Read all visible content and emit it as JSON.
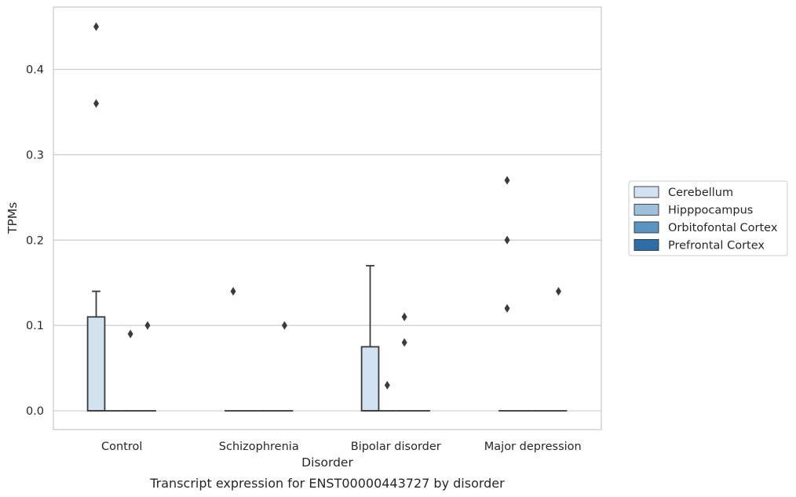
{
  "caption": "Transcript expression for ENST00000443727 by disorder",
  "chart_data": {
    "type": "box",
    "xlabel": "Disorder",
    "ylabel": "TPMs",
    "ylim": [
      -0.022,
      0.473
    ],
    "yticks": [
      0.0,
      0.1,
      0.2,
      0.3,
      0.4
    ],
    "ytick_labels": [
      "0.0",
      "0.1",
      "0.2",
      "0.3",
      "0.4"
    ],
    "grid": "horizontal",
    "legend_placement": "right, outside plot",
    "categories": [
      "Control",
      "Schizophrenia",
      "Bipolar disorder",
      "Major depression"
    ],
    "series": [
      {
        "name": "Cerebellum",
        "color": "#d3e2f0",
        "boxes": [
          {
            "q1": 0.0,
            "median": 0.0,
            "q3": 0.11,
            "whisker_low": 0.0,
            "whisker_high": 0.14,
            "outliers": [
              0.45,
              0.36
            ]
          },
          {
            "q1": 0.0,
            "median": 0.0,
            "q3": 0.0,
            "whisker_low": 0.0,
            "whisker_high": 0.0,
            "outliers": [
              0.14
            ]
          },
          {
            "q1": 0.0,
            "median": 0.0,
            "q3": 0.075,
            "whisker_low": 0.0,
            "whisker_high": 0.17,
            "outliers": []
          },
          {
            "q1": 0.0,
            "median": 0.0,
            "q3": 0.0,
            "whisker_low": 0.0,
            "whisker_high": 0.0,
            "outliers": [
              0.27,
              0.2,
              0.12
            ]
          }
        ]
      },
      {
        "name": "Hipppocampus",
        "color": "#9dc0dc",
        "boxes": [
          {
            "q1": 0.0,
            "median": 0.0,
            "q3": 0.0,
            "whisker_low": 0.0,
            "whisker_high": 0.0,
            "outliers": []
          },
          {
            "q1": 0.0,
            "median": 0.0,
            "q3": 0.0,
            "whisker_low": 0.0,
            "whisker_high": 0.0,
            "outliers": []
          },
          {
            "q1": 0.0,
            "median": 0.0,
            "q3": 0.0,
            "whisker_low": 0.0,
            "whisker_high": 0.0,
            "outliers": [
              0.03
            ]
          },
          {
            "q1": 0.0,
            "median": 0.0,
            "q3": 0.0,
            "whisker_low": 0.0,
            "whisker_high": 0.0,
            "outliers": []
          }
        ]
      },
      {
        "name": "Orbitofontal Cortex",
        "color": "#5b93c1",
        "boxes": [
          {
            "q1": 0.0,
            "median": 0.0,
            "q3": 0.0,
            "whisker_low": 0.0,
            "whisker_high": 0.0,
            "outliers": [
              0.09
            ]
          },
          {
            "q1": 0.0,
            "median": 0.0,
            "q3": 0.0,
            "whisker_low": 0.0,
            "whisker_high": 0.0,
            "outliers": []
          },
          {
            "q1": 0.0,
            "median": 0.0,
            "q3": 0.0,
            "whisker_low": 0.0,
            "whisker_high": 0.0,
            "outliers": [
              0.11,
              0.08
            ]
          },
          {
            "q1": 0.0,
            "median": 0.0,
            "q3": 0.0,
            "whisker_low": 0.0,
            "whisker_high": 0.0,
            "outliers": []
          }
        ]
      },
      {
        "name": "Prefrontal Cortex",
        "color": "#2e6da6",
        "boxes": [
          {
            "q1": 0.0,
            "median": 0.0,
            "q3": 0.0,
            "whisker_low": 0.0,
            "whisker_high": 0.0,
            "outliers": [
              0.1
            ]
          },
          {
            "q1": 0.0,
            "median": 0.0,
            "q3": 0.0,
            "whisker_low": 0.0,
            "whisker_high": 0.0,
            "outliers": [
              0.1
            ]
          },
          {
            "q1": 0.0,
            "median": 0.0,
            "q3": 0.0,
            "whisker_low": 0.0,
            "whisker_high": 0.0,
            "outliers": []
          },
          {
            "q1": 0.0,
            "median": 0.0,
            "q3": 0.0,
            "whisker_low": 0.0,
            "whisker_high": 0.0,
            "outliers": [
              0.14
            ]
          }
        ]
      }
    ]
  }
}
